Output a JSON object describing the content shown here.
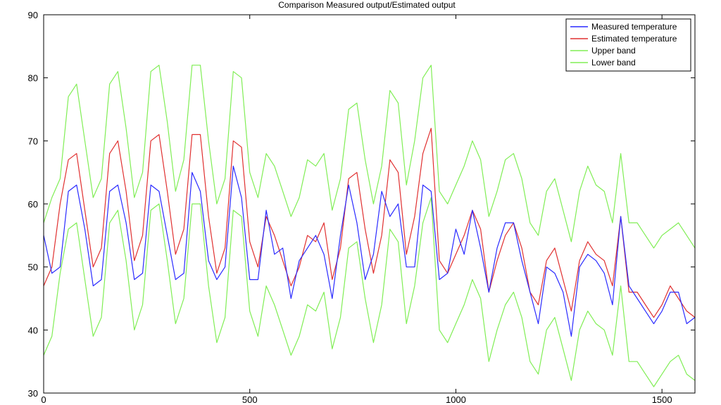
{
  "chart_data": {
    "type": "line",
    "title": "Comparison Measured output/Estimated output",
    "xlabel": "",
    "ylabel": "",
    "xlim": [
      0,
      1580
    ],
    "ylim": [
      30,
      90
    ],
    "xticks": [
      0,
      500,
      1000,
      1500
    ],
    "yticks": [
      30,
      40,
      50,
      60,
      70,
      80,
      90
    ],
    "grid": false,
    "legend_position": "top-right",
    "series": [
      {
        "name": "Measured temperature",
        "color": "#2a2aff",
        "x": [
          0,
          20,
          40,
          60,
          80,
          100,
          120,
          140,
          160,
          180,
          200,
          220,
          240,
          260,
          280,
          300,
          320,
          340,
          360,
          380,
          400,
          420,
          440,
          460,
          480,
          500,
          520,
          540,
          560,
          580,
          600,
          620,
          640,
          660,
          680,
          700,
          720,
          740,
          760,
          780,
          800,
          820,
          840,
          860,
          880,
          900,
          920,
          940,
          960,
          980,
          1000,
          1020,
          1040,
          1060,
          1080,
          1100,
          1120,
          1140,
          1160,
          1180,
          1200,
          1220,
          1240,
          1260,
          1280,
          1300,
          1320,
          1340,
          1360,
          1380,
          1400,
          1420,
          1440,
          1460,
          1480,
          1500,
          1520,
          1540,
          1560,
          1580
        ],
        "values": [
          55,
          49,
          50,
          62,
          63,
          56,
          47,
          48,
          62,
          63,
          57,
          48,
          49,
          63,
          62,
          55,
          48,
          49,
          65,
          62,
          51,
          48,
          50,
          66,
          61,
          48,
          48,
          59,
          52,
          53,
          45,
          51,
          53,
          55,
          52,
          45,
          55,
          63,
          57,
          48,
          52,
          62,
          58,
          60,
          50,
          50,
          63,
          62,
          48,
          49,
          56,
          52,
          59,
          53,
          46,
          53,
          57,
          57,
          51,
          46,
          41,
          50,
          49,
          46,
          39,
          50,
          52,
          51,
          49,
          44,
          58,
          47,
          45,
          43,
          41,
          43,
          46,
          46,
          41,
          42
        ]
      },
      {
        "name": "Estimated temperature",
        "color": "#e03030",
        "x": [
          0,
          20,
          40,
          60,
          80,
          100,
          120,
          140,
          160,
          180,
          200,
          220,
          240,
          260,
          280,
          300,
          320,
          340,
          360,
          380,
          400,
          420,
          440,
          460,
          480,
          500,
          520,
          540,
          560,
          580,
          600,
          620,
          640,
          660,
          680,
          700,
          720,
          740,
          760,
          780,
          800,
          820,
          840,
          860,
          880,
          900,
          920,
          940,
          960,
          980,
          1000,
          1020,
          1040,
          1060,
          1080,
          1100,
          1120,
          1140,
          1160,
          1180,
          1200,
          1220,
          1240,
          1260,
          1280,
          1300,
          1320,
          1340,
          1360,
          1380,
          1400,
          1420,
          1440,
          1460,
          1480,
          1500,
          1520,
          1540,
          1560,
          1580
        ],
        "values": [
          47,
          50,
          60,
          67,
          68,
          59,
          50,
          53,
          68,
          70,
          62,
          51,
          55,
          70,
          71,
          62,
          52,
          56,
          71,
          71,
          58,
          49,
          53,
          70,
          69,
          54,
          50,
          58,
          55,
          51,
          47,
          50,
          55,
          54,
          57,
          48,
          53,
          64,
          65,
          56,
          49,
          55,
          67,
          65,
          52,
          58,
          68,
          72,
          51,
          49,
          52,
          55,
          59,
          56,
          46,
          51,
          55,
          57,
          53,
          46,
          44,
          51,
          53,
          48,
          43,
          51,
          54,
          52,
          51,
          47,
          58,
          46,
          46,
          44,
          42,
          44,
          47,
          45,
          43,
          42
        ]
      },
      {
        "name": "Upper band",
        "color": "#80ee55",
        "x": [
          0,
          20,
          40,
          60,
          80,
          100,
          120,
          140,
          160,
          180,
          200,
          220,
          240,
          260,
          280,
          300,
          320,
          340,
          360,
          380,
          400,
          420,
          440,
          460,
          480,
          500,
          520,
          540,
          560,
          580,
          600,
          620,
          640,
          660,
          680,
          700,
          720,
          740,
          760,
          780,
          800,
          820,
          840,
          860,
          880,
          900,
          920,
          940,
          960,
          980,
          1000,
          1020,
          1040,
          1060,
          1080,
          1100,
          1120,
          1140,
          1160,
          1180,
          1200,
          1220,
          1240,
          1260,
          1280,
          1300,
          1320,
          1340,
          1360,
          1380,
          1400,
          1420,
          1440,
          1460,
          1480,
          1500,
          1520,
          1540,
          1560,
          1580
        ],
        "values": [
          57,
          61,
          64,
          77,
          79,
          70,
          61,
          64,
          79,
          81,
          72,
          61,
          65,
          81,
          82,
          73,
          62,
          67,
          82,
          82,
          70,
          60,
          64,
          81,
          80,
          65,
          61,
          68,
          66,
          62,
          58,
          61,
          67,
          66,
          68,
          59,
          64,
          75,
          76,
          67,
          60,
          66,
          78,
          76,
          63,
          70,
          80,
          82,
          62,
          60,
          63,
          66,
          70,
          67,
          58,
          62,
          67,
          68,
          64,
          57,
          55,
          62,
          64,
          59,
          54,
          62,
          66,
          63,
          62,
          57,
          68,
          57,
          57,
          55,
          53,
          55,
          56,
          57,
          55,
          53
        ]
      },
      {
        "name": "Lower band",
        "color": "#80ee55",
        "x": [
          0,
          20,
          40,
          60,
          80,
          100,
          120,
          140,
          160,
          180,
          200,
          220,
          240,
          260,
          280,
          300,
          320,
          340,
          360,
          380,
          400,
          420,
          440,
          460,
          480,
          500,
          520,
          540,
          560,
          580,
          600,
          620,
          640,
          660,
          680,
          700,
          720,
          740,
          760,
          780,
          800,
          820,
          840,
          860,
          880,
          900,
          920,
          940,
          960,
          980,
          1000,
          1020,
          1040,
          1060,
          1080,
          1100,
          1120,
          1140,
          1160,
          1180,
          1200,
          1220,
          1240,
          1260,
          1280,
          1300,
          1320,
          1340,
          1360,
          1380,
          1400,
          1420,
          1440,
          1460,
          1480,
          1500,
          1520,
          1540,
          1560,
          1580
        ],
        "values": [
          36,
          39,
          49,
          56,
          57,
          48,
          39,
          42,
          57,
          59,
          51,
          40,
          44,
          59,
          60,
          51,
          41,
          45,
          60,
          60,
          47,
          38,
          42,
          59,
          58,
          43,
          39,
          47,
          44,
          40,
          36,
          39,
          44,
          43,
          46,
          37,
          42,
          53,
          54,
          45,
          38,
          44,
          56,
          54,
          41,
          47,
          57,
          61,
          40,
          38,
          41,
          44,
          48,
          45,
          35,
          40,
          44,
          46,
          42,
          35,
          33,
          40,
          42,
          37,
          32,
          40,
          43,
          41,
          40,
          36,
          47,
          35,
          35,
          33,
          31,
          33,
          35,
          36,
          33,
          32
        ]
      }
    ]
  }
}
